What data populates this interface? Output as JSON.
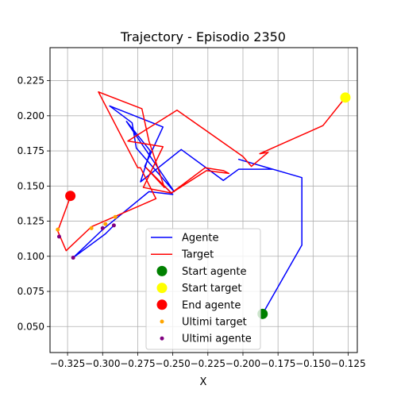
{
  "chart_data": {
    "type": "line",
    "title": "Trajectory - Episodio 2350",
    "xlabel": "X",
    "ylabel": "",
    "xlim": [
      -0.3375,
      -0.1185
    ],
    "ylim": [
      0.0315,
      0.2485
    ],
    "grid": true,
    "legend_position": "lower center",
    "xticks": [
      -0.325,
      -0.3,
      -0.275,
      -0.25,
      -0.225,
      -0.2,
      -0.175,
      -0.15,
      -0.125
    ],
    "xtick_labels": [
      "−0.325",
      "−0.300",
      "−0.275",
      "−0.250",
      "−0.225",
      "−0.200",
      "−0.175",
      "−0.150",
      "−0.125"
    ],
    "yticks": [
      0.05,
      0.075,
      0.1,
      0.125,
      0.15,
      0.175,
      0.2,
      0.225
    ],
    "ytick_labels": [
      "0.050",
      "0.075",
      "0.100",
      "0.125",
      "0.150",
      "0.175",
      "0.200",
      "0.225"
    ],
    "series": [
      {
        "name": "Agente",
        "kind": "line",
        "color": "#0000ff",
        "x": [
          -0.186,
          -0.158,
          -0.158,
          -0.203,
          -0.179,
          -0.203,
          -0.214,
          -0.244,
          -0.273,
          -0.266,
          -0.283,
          -0.249,
          -0.276,
          -0.279,
          -0.295,
          -0.257,
          -0.27,
          -0.25,
          -0.267,
          -0.3,
          -0.321,
          -0.298,
          -0.292
        ],
        "y": [
          0.059,
          0.108,
          0.156,
          0.169,
          0.162,
          0.162,
          0.154,
          0.176,
          0.153,
          0.175,
          0.196,
          0.146,
          0.177,
          0.195,
          0.207,
          0.192,
          0.164,
          0.144,
          0.146,
          0.119,
          0.099,
          0.116,
          0.122
        ]
      },
      {
        "name": "Target",
        "kind": "line",
        "color": "#ff0000",
        "x": [
          -0.127,
          -0.143,
          -0.188,
          -0.182,
          -0.194,
          -0.2,
          -0.247,
          -0.282,
          -0.257,
          -0.271,
          -0.251,
          -0.226,
          -0.21,
          -0.214,
          -0.227,
          -0.251,
          -0.269,
          -0.256,
          -0.267,
          -0.272,
          -0.303,
          -0.275,
          -0.273,
          -0.262,
          -0.308,
          -0.326,
          -0.332,
          -0.322,
          -0.322
        ],
        "y": [
          0.213,
          0.193,
          0.173,
          0.174,
          0.164,
          0.171,
          0.204,
          0.182,
          0.178,
          0.149,
          0.145,
          0.161,
          0.159,
          0.161,
          0.163,
          0.145,
          0.163,
          0.149,
          0.182,
          0.205,
          0.217,
          0.163,
          0.163,
          0.141,
          0.121,
          0.104,
          0.118,
          0.145,
          0.143
        ]
      },
      {
        "name": "Start agente",
        "kind": "point",
        "color": "#008000",
        "x": [
          -0.186
        ],
        "y": [
          0.059
        ]
      },
      {
        "name": "Start target",
        "kind": "point",
        "color": "#ffff00",
        "x": [
          -0.127
        ],
        "y": [
          0.213
        ]
      },
      {
        "name": "End agente",
        "kind": "point",
        "color": "#ff0000",
        "x": [
          -0.323
        ],
        "y": [
          0.143
        ]
      },
      {
        "name": "Ultimi target",
        "kind": "small-points",
        "color": "#ffa500",
        "x": [
          -0.332,
          -0.308,
          -0.298,
          -0.291,
          -0.322
        ],
        "y": [
          0.119,
          0.12,
          0.123,
          0.128,
          0.145
        ]
      },
      {
        "name": "Ultimi agente",
        "kind": "small-points",
        "color": "#800080",
        "x": [
          -0.331,
          -0.321,
          -0.3,
          -0.292
        ],
        "y": [
          0.114,
          0.099,
          0.12,
          0.122
        ]
      }
    ]
  }
}
